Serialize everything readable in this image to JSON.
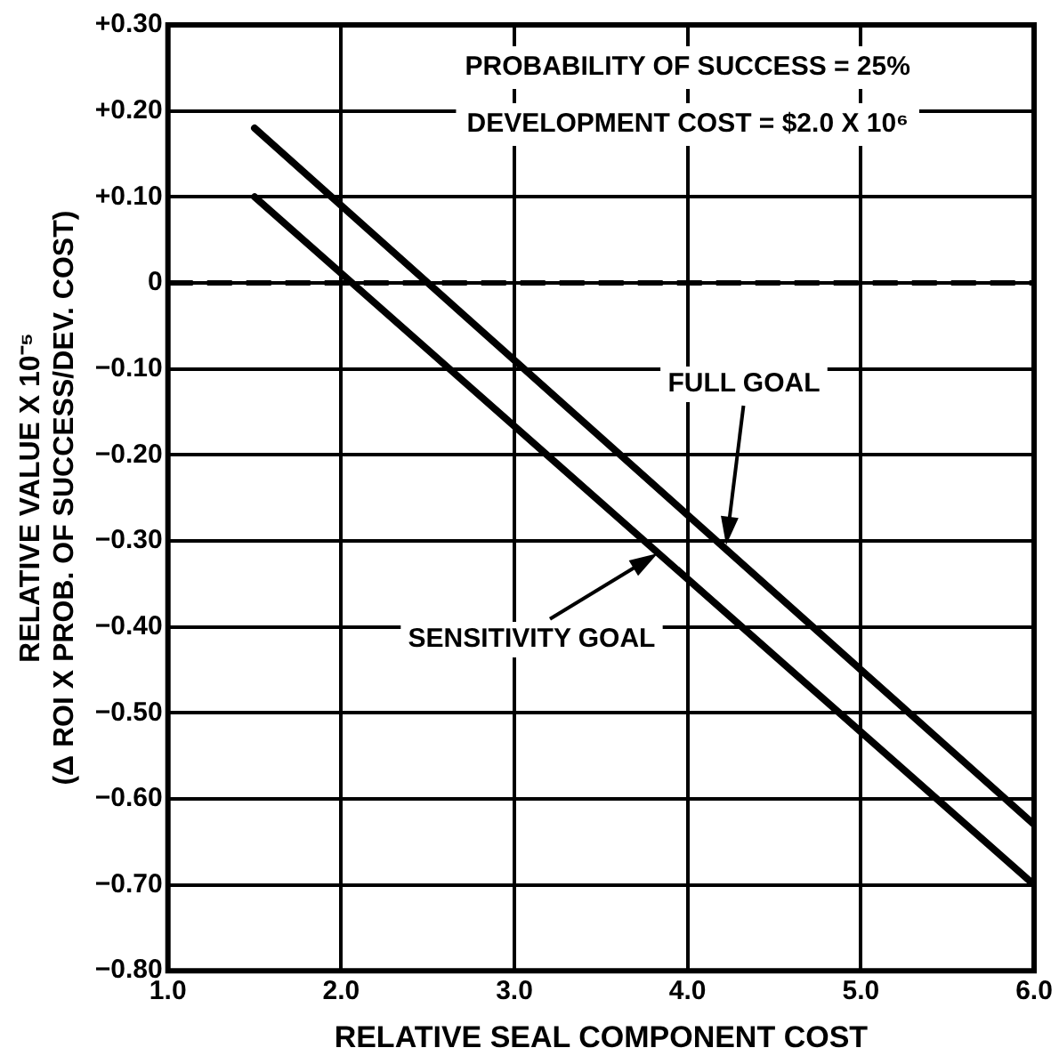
{
  "chart_data": {
    "type": "line",
    "xlabel": "RELATIVE SEAL COMPONENT COST",
    "ylabel": "RELATIVE VALUE X 10⁻⁵\n(Δ ROI X PROB. OF SUCCESS/DEV. COST)",
    "x": [
      1.5,
      6.0
    ],
    "series": [
      {
        "color": "#000000",
        "values": [
          0.18,
          -0.63
        ]
      },
      {
        "color": "#000000",
        "values": [
          0.1,
          -0.7
        ]
      }
    ],
    "xlim": [
      1.0,
      6.0
    ],
    "xticks": [
      {
        "value": 1,
        "label": "1.0"
      },
      {
        "value": 2,
        "label": "2.0"
      },
      {
        "value": 3,
        "label": "3.0"
      },
      {
        "value": 4,
        "label": "4.0"
      },
      {
        "value": 5,
        "label": "5.0"
      },
      {
        "value": 6,
        "label": "6.0"
      }
    ],
    "ylim": [
      -0.8,
      0.3
    ],
    "yticks": [
      {
        "value": 0.3,
        "label": "+0.30"
      },
      {
        "value": 0.2,
        "label": "+0.20"
      },
      {
        "value": 0.1,
        "label": "+0.10"
      },
      0,
      {
        "value": -0.1,
        "label": "−0.10"
      },
      {
        "value": -0.2,
        "label": "−0.20"
      },
      {
        "value": -0.3,
        "label": "−0.30"
      },
      {
        "value": -0.4,
        "label": "−0.40"
      },
      {
        "value": -0.5,
        "label": "−0.50"
      },
      {
        "value": -0.6,
        "label": "−0.60"
      },
      {
        "value": -0.7,
        "label": "−0.70"
      },
      {
        "value": -0.8,
        "label": "−0.80"
      }
    ],
    "ref_lines": [
      {
        "axis": "y",
        "value": 0,
        "color": "#000000",
        "line_style": "dashed"
      }
    ],
    "annotations": [
      "PROBABILITY OF SUCCESS = 25%",
      "DEVELOPMENT COST = $2.0 X 10⁶",
      "FULL GOAL",
      "SENSITIVITY GOAL"
    ],
    "grid": true,
    "legend": false,
    "marker": "none",
    "line_style": "solid"
  }
}
